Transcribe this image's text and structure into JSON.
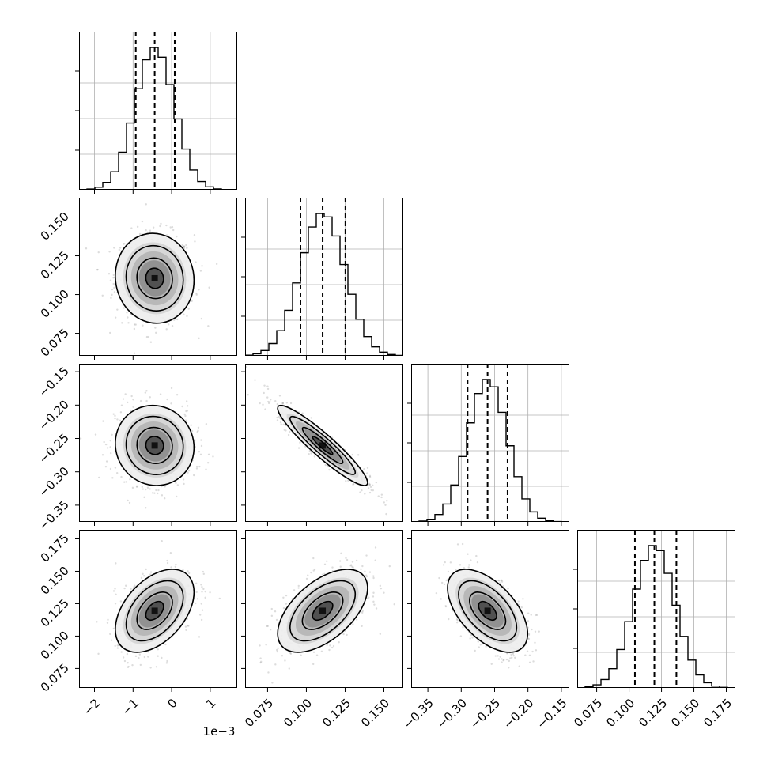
{
  "chart_data": {
    "type": "scatter",
    "subtype": "corner-plot",
    "title": "",
    "n_params": 4,
    "grid": true,
    "params": [
      {
        "range": [
          -0.0024,
          0.0017
        ],
        "median": -0.00044,
        "q16": -0.00093,
        "q84": 8e-05,
        "sigma": 0.00051,
        "ticks": [
          -0.002,
          -0.001,
          0.0,
          0.001
        ],
        "tick_labels": [
          "−2",
          "−1",
          "0",
          "1"
        ],
        "offset_label": "1e−3"
      },
      {
        "range": [
          0.0605,
          0.1625
        ],
        "median": 0.1105,
        "q16": 0.0962,
        "q84": 0.1252,
        "sigma": 0.0145,
        "ticks": [
          0.075,
          0.1,
          0.125,
          0.15
        ],
        "tick_labels": [
          "0.075",
          "0.100",
          "0.125",
          "0.150"
        ]
      },
      {
        "range": [
          -0.375,
          -0.138
        ],
        "median": -0.2605,
        "q16": -0.2905,
        "q84": -0.2305,
        "sigma": 0.03,
        "ticks": [
          -0.35,
          -0.3,
          -0.25,
          -0.2,
          -0.15
        ],
        "tick_labels": [
          "−0.35",
          "−0.30",
          "−0.25",
          "−0.20",
          "−0.15"
        ]
      },
      {
        "range": [
          0.06,
          0.182
        ],
        "median": 0.1195,
        "q16": 0.1045,
        "q84": 0.1365,
        "sigma": 0.016,
        "ticks": [
          0.075,
          0.1,
          0.125,
          0.15,
          0.175
        ],
        "tick_labels": [
          "0.075",
          "0.100",
          "0.125",
          "0.150",
          "0.175"
        ]
      }
    ],
    "correlations": [
      [
        1.0,
        -0.05,
        -0.05,
        0.45
      ],
      [
        -0.05,
        1.0,
        -0.93,
        0.55
      ],
      [
        -0.05,
        -0.93,
        1.0,
        -0.55
      ],
      [
        0.45,
        0.55,
        -0.55,
        1.0
      ]
    ]
  }
}
